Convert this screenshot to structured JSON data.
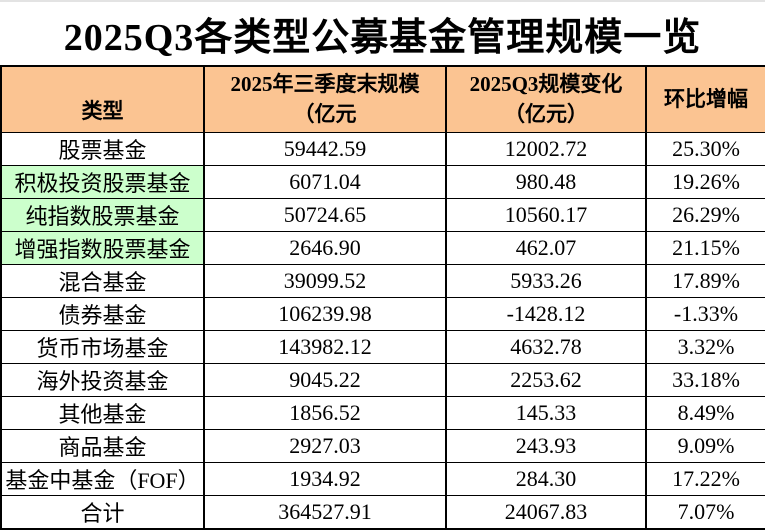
{
  "title": "2025Q3各类型公募基金管理规模一览",
  "colors": {
    "header_bg": "#FBC492",
    "type_highlight_bg": "#CCFFCC",
    "increase_red": "#FF0000",
    "decrease_green": "#00B050",
    "text": "#000000"
  },
  "table": {
    "columns": {
      "type": "类型",
      "scale_line1": "2025年三季度末规模",
      "scale_line2": "（亿元",
      "change_line1": "2025Q3规模变化",
      "change_line2": "（亿元）",
      "growth": "环比增幅"
    },
    "rows": [
      {
        "type": "股票基金",
        "scale": "59442.59",
        "change": "12002.72",
        "growth": "25.30%",
        "change_style": "red",
        "growth_style": "red"
      },
      {
        "type": "积极投资股票基金",
        "scale": "6071.04",
        "change": "980.48",
        "growth": "19.26%",
        "type_bg": "green"
      },
      {
        "type": "纯指数股票基金",
        "scale": "50724.65",
        "change": "10560.17",
        "growth": "26.29%",
        "type_bg": "green"
      },
      {
        "type": "增强指数股票基金",
        "scale": "2646.90",
        "change": "462.07",
        "growth": "21.15%",
        "type_bg": "green"
      },
      {
        "type": "混合基金",
        "scale": "39099.52",
        "change": "5933.26",
        "growth": "17.89%"
      },
      {
        "type": "债券基金",
        "scale": "106239.98",
        "change": "-1428.12",
        "growth": "-1.33%",
        "change_style": "green",
        "growth_style": "green"
      },
      {
        "type": "货币市场基金",
        "scale": "143982.12",
        "change": "4632.78",
        "growth": "3.32%"
      },
      {
        "type": "海外投资基金",
        "scale": "9045.22",
        "change": "2253.62",
        "growth": "33.18%",
        "change_style": "red",
        "growth_style": "red"
      },
      {
        "type": "其他基金",
        "scale": "1856.52",
        "change": "145.33",
        "growth": "8.49%"
      },
      {
        "type": "商品基金",
        "scale": "2927.03",
        "change": "243.93",
        "growth": "9.09%"
      },
      {
        "type": "基金中基金（FOF）",
        "scale": "1934.92",
        "change": "284.30",
        "growth": "17.22%"
      },
      {
        "type": "合计",
        "scale": "364527.91",
        "change": "24067.83",
        "growth": "7.07%",
        "type_style": "red",
        "scale_style": "red",
        "change_style": "red"
      }
    ]
  }
}
